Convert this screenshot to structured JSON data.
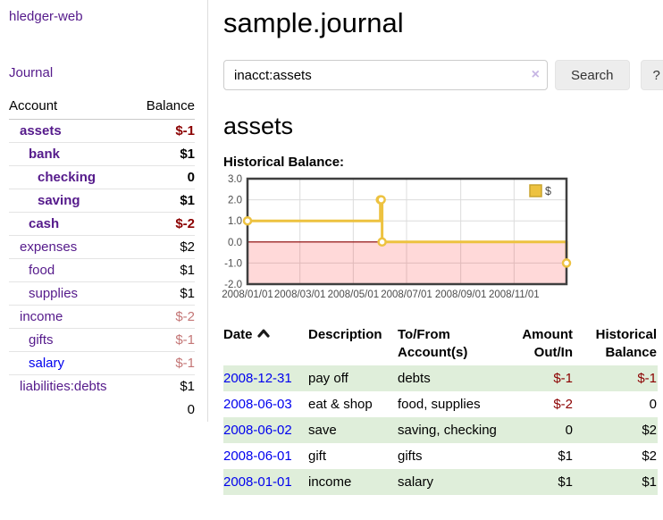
{
  "app": {
    "brand": "hledger-web"
  },
  "nav": {
    "journal_label": "Journal"
  },
  "sidebar": {
    "headers": {
      "account": "Account",
      "balance": "Balance"
    },
    "accounts": [
      {
        "name": "assets",
        "indent": 1,
        "bold": true,
        "link_color": "purple",
        "balance": "$-1",
        "balance_class": "neg-strong"
      },
      {
        "name": "bank",
        "indent": 2,
        "bold": true,
        "link_color": "purple",
        "balance": "$1",
        "balance_class": ""
      },
      {
        "name": "checking",
        "indent": 3,
        "bold": true,
        "link_color": "purple",
        "balance": "0",
        "balance_class": ""
      },
      {
        "name": "saving",
        "indent": 3,
        "bold": true,
        "link_color": "purple",
        "balance": "$1",
        "balance_class": ""
      },
      {
        "name": "cash",
        "indent": 2,
        "bold": true,
        "link_color": "purple",
        "balance": "$-2",
        "balance_class": "neg-strong"
      },
      {
        "name": "expenses",
        "indent": 1,
        "bold": false,
        "link_color": "purple",
        "balance": "$2",
        "balance_class": "plain"
      },
      {
        "name": "food",
        "indent": 2,
        "bold": false,
        "link_color": "purple",
        "balance": "$1",
        "balance_class": "plain"
      },
      {
        "name": "supplies",
        "indent": 2,
        "bold": false,
        "link_color": "purple",
        "balance": "$1",
        "balance_class": "plain"
      },
      {
        "name": "income",
        "indent": 1,
        "bold": false,
        "link_color": "purple",
        "balance": "$-2",
        "balance_class": "neg-soft"
      },
      {
        "name": "gifts",
        "indent": 2,
        "bold": false,
        "link_color": "purple",
        "balance": "$-1",
        "balance_class": "neg-soft"
      },
      {
        "name": "salary",
        "indent": 2,
        "bold": false,
        "link_color": "blue",
        "balance": "$-1",
        "balance_class": "neg-soft"
      },
      {
        "name": "liabilities:debts",
        "indent": 1,
        "bold": false,
        "link_color": "purple",
        "balance": "$1",
        "balance_class": "plain"
      }
    ],
    "total": "0"
  },
  "header": {
    "title": "sample.journal"
  },
  "search": {
    "value": "inacct:assets",
    "clear_icon": "×",
    "button_label": "Search",
    "help_label": "?"
  },
  "account_page": {
    "heading": "assets",
    "chart_title": "Historical Balance:"
  },
  "chart_data": {
    "type": "line",
    "step": true,
    "title": "Historical Balance:",
    "series": [
      {
        "name": "$",
        "color": "#edc240",
        "points": [
          [
            "2008-01-01",
            1.0
          ],
          [
            "2008-06-01",
            2.0
          ],
          [
            "2008-06-02",
            2.0
          ],
          [
            "2008-06-03",
            0.0
          ],
          [
            "2008-12-31",
            -1.0
          ]
        ]
      }
    ],
    "x_range": [
      "2008-01-01",
      "2008-12-31"
    ],
    "x_tick_labels": [
      "2008/01/01",
      "2008/03/01",
      "2008/05/01",
      "2008/07/01",
      "2008/09/01",
      "2008/11/01"
    ],
    "y_tick_labels": [
      "3.0",
      "2.0",
      "1.0",
      "0.0",
      "-1.0",
      "-2.0"
    ],
    "y_ticks": [
      3,
      2,
      1,
      0,
      -1,
      -2
    ],
    "ylim": [
      -2,
      3
    ],
    "grid": true,
    "legend_position": "top-right",
    "legend": [
      "$"
    ],
    "negative_region_color": "rgba(255,0,0,0.15)",
    "zero_line_color": "#8b0000",
    "colors": {
      "grid": "#dcdcdc",
      "border": "#3f3f3f",
      "tick_text": "#4c4c4c"
    }
  },
  "register": {
    "headers": [
      {
        "label": "Date",
        "align": "left",
        "sorted": true
      },
      {
        "label": "Description",
        "align": "left",
        "sorted": false
      },
      {
        "label": "To/From Account(s)",
        "align": "left",
        "sorted": false
      },
      {
        "label": "Amount Out/In",
        "align": "right",
        "sorted": false
      },
      {
        "label": "Historical Balance",
        "align": "right",
        "sorted": false
      }
    ],
    "rows": [
      {
        "date": "2008-12-31",
        "description": "pay off",
        "accounts": "debts",
        "amount": "$-1",
        "amount_neg": true,
        "balance": "$-1",
        "balance_neg": true,
        "shade": true
      },
      {
        "date": "2008-06-03",
        "description": "eat & shop",
        "accounts": "food, supplies",
        "amount": "$-2",
        "amount_neg": true,
        "balance": "0",
        "balance_neg": false,
        "shade": false
      },
      {
        "date": "2008-06-02",
        "description": "save",
        "accounts": "saving, checking",
        "amount": "0",
        "amount_neg": false,
        "balance": "$2",
        "balance_neg": false,
        "shade": true
      },
      {
        "date": "2008-06-01",
        "description": "gift",
        "accounts": "gifts",
        "amount": "$1",
        "amount_neg": false,
        "balance": "$2",
        "balance_neg": false,
        "shade": false
      },
      {
        "date": "2008-01-01",
        "description": "income",
        "accounts": "salary",
        "amount": "$1",
        "amount_neg": false,
        "balance": "$1",
        "balance_neg": false,
        "shade": true
      }
    ]
  }
}
